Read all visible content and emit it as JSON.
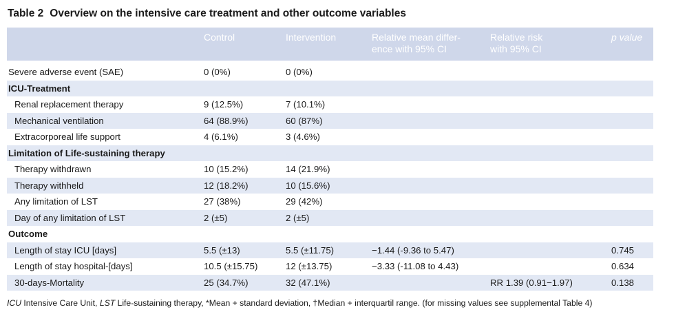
{
  "title": {
    "number": "Table 2",
    "text": "Overview on the intensive care treatment and other outcome variables"
  },
  "header": {
    "control": "Control",
    "intervention": "Intervention",
    "rmd_line1": "Relative mean differ-",
    "rmd_line2": "ence with 95% CI",
    "rr_line1": "Relative risk",
    "rr_line2": "with 95% CI",
    "p_value": "p value"
  },
  "rows": {
    "sae": {
      "label": "Severe adverse event (SAE)",
      "control": "0 (0%)",
      "intervention": "0 (0%)"
    },
    "icu_section": {
      "label": "ICU-Treatment"
    },
    "renal": {
      "label": "Renal replacement therapy",
      "control": "9 (12.5%)",
      "intervention": "7 (10.1%)"
    },
    "mech": {
      "label": "Mechanical ventilation",
      "control": "64 (88.9%)",
      "intervention": "60 (87%)"
    },
    "ecls": {
      "label": "Extracorporeal life support",
      "control": "4 (6.1%)",
      "intervention": "3 (4.6%)"
    },
    "lst_section": {
      "label": "Limitation of Life-sustaining therapy"
    },
    "withdrawn": {
      "label": "Therapy withdrawn",
      "control": "10 (15.2%)",
      "intervention": "14 (21.9%)"
    },
    "withheld": {
      "label": "Therapy withheld",
      "control": "12 (18.2%)",
      "intervention": "10 (15.6%)"
    },
    "anylim": {
      "label": "Any limitation of LST",
      "control": "27 (38%)",
      "intervention": "29 (42%)"
    },
    "daylim": {
      "label": "Day of any limitation of LST",
      "control": "2 (±5)",
      "intervention": "2 (±5)"
    },
    "outcome_section": {
      "label": "Outcome"
    },
    "los_icu": {
      "label": "Length of stay ICU [days]",
      "control": "5.5 (±13)",
      "intervention": "5.5 (±11.75)",
      "rmd": "−1.44 (-9.36 to 5.47)",
      "p": "0.745"
    },
    "los_hosp": {
      "label": "Length of stay hospital-[days]",
      "control": "10.5 (±15.75)",
      "intervention": "12 (±13.75)",
      "rmd": "−3.33 (-11.08 to 4.43)",
      "p": "0.634"
    },
    "mortality": {
      "label": "30-days-Mortality",
      "control": "25 (34.7%)",
      "intervention": "32 (47.1%)",
      "rr": "RR 1.39 (0.91−1.97)",
      "p": "0.138"
    }
  },
  "footnote": {
    "abbr1": "ICU",
    "def1": " Intensive Care Unit, ",
    "abbr2": "LST",
    "def2": " Life-sustaining therapy, *Mean + standard deviation, †Median + interquartil range. (for missing values see supplemental Table 4)"
  }
}
